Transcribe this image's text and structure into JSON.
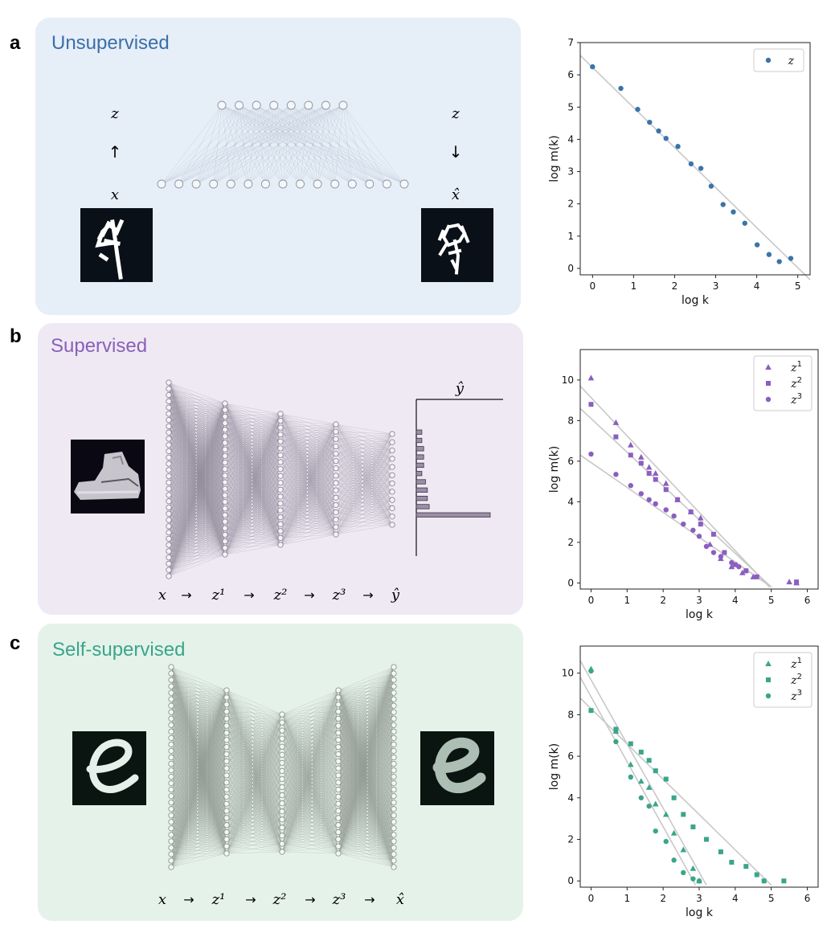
{
  "panels": [
    {
      "letter": "a",
      "title": "Unsupervised",
      "title_color": "#3b6fa8",
      "bg": "#e6eef8"
    },
    {
      "letter": "b",
      "title": "Supervised",
      "title_color": "#8a60b8",
      "bg": "#efe9f4"
    },
    {
      "letter": "c",
      "title": "Self-supervised",
      "title_color": "#3aa58b",
      "bg": "#e5f2ea"
    }
  ],
  "diagram_a": {
    "z_left": "z",
    "arrow_up": "↑",
    "x_left": "x",
    "z_right": "z",
    "arrow_down": "↓",
    "xhat_right": "x̂"
  },
  "diagram_b": {
    "output_label": "ŷ",
    "flow": [
      "x",
      "→",
      "z¹",
      "→",
      "z²",
      "→",
      "z³",
      "→",
      "ŷ"
    ],
    "output_bars": [
      0.03,
      0.03,
      0.04,
      0.04,
      0.04,
      0.03,
      0.05,
      0.06,
      0.06,
      0.07,
      0.4
    ],
    "bar_color": "#9a8fa6"
  },
  "diagram_c": {
    "flow": [
      "x",
      "→",
      "z¹",
      "→",
      "z²",
      "→",
      "z³",
      "→",
      "x̂"
    ]
  },
  "chart_data": [
    {
      "type": "scatter",
      "xlabel": "log k",
      "ylabel": "log m(k)",
      "xlim": [
        -0.3,
        5.3
      ],
      "ylim": [
        -0.2,
        7
      ],
      "xticks": [
        0,
        1,
        2,
        3,
        4,
        5
      ],
      "yticks": [
        0,
        1,
        2,
        3,
        4,
        5,
        6,
        7
      ],
      "legend": "top-right",
      "color": "#3b74a8",
      "series": [
        {
          "name": "z",
          "marker": "circle",
          "x": [
            0,
            0.69,
            1.1,
            1.39,
            1.61,
            1.79,
            2.08,
            2.4,
            2.64,
            2.89,
            3.18,
            3.43,
            3.71,
            4.01,
            4.3,
            4.55,
            4.83
          ],
          "y": [
            6.25,
            5.58,
            4.93,
            4.53,
            4.26,
            4.03,
            3.78,
            3.24,
            3.1,
            2.55,
            1.98,
            1.75,
            1.4,
            0.73,
            0.43,
            0.21,
            0.31
          ]
        }
      ],
      "fit_lines": [
        {
          "x": [
            -0.3,
            5.3
          ],
          "y": [
            6.6,
            -0.35
          ]
        }
      ]
    },
    {
      "type": "scatter",
      "xlabel": "log k",
      "ylabel": "log m(k)",
      "xlim": [
        -0.3,
        6.3
      ],
      "ylim": [
        -0.3,
        11.5
      ],
      "xticks": [
        0,
        1,
        2,
        3,
        4,
        5,
        6
      ],
      "yticks": [
        0,
        2,
        4,
        6,
        8,
        10
      ],
      "legend": "top-right",
      "color": "#8a5fc0",
      "series": [
        {
          "name": "z1",
          "marker": "triangle",
          "x": [
            0,
            0.69,
            1.1,
            1.39,
            1.61,
            1.79,
            2.08,
            2.4,
            2.77,
            3.04,
            3.3,
            3.6,
            3.9,
            4.2,
            4.5,
            5.5,
            5.7
          ],
          "y": [
            10.1,
            7.9,
            6.8,
            6.2,
            5.7,
            5.4,
            4.9,
            4.1,
            3.5,
            3.2,
            1.9,
            1.2,
            0.8,
            0.5,
            0.3,
            0.05,
            0.0
          ]
        },
        {
          "name": "z2",
          "marker": "square",
          "x": [
            0,
            0.69,
            1.1,
            1.39,
            1.61,
            1.79,
            2.08,
            2.4,
            2.77,
            3.04,
            3.4,
            3.7,
            4.0,
            4.3,
            4.6,
            5.7
          ],
          "y": [
            8.8,
            7.2,
            6.3,
            5.9,
            5.4,
            5.1,
            4.6,
            4.1,
            3.5,
            2.9,
            2.4,
            1.5,
            0.9,
            0.6,
            0.3,
            0.05
          ]
        },
        {
          "name": "z3",
          "marker": "circle",
          "x": [
            0,
            0.69,
            1.1,
            1.39,
            1.61,
            1.79,
            2.08,
            2.3,
            2.56,
            2.83,
            3.0,
            3.2,
            3.4,
            3.6,
            3.9,
            4.1,
            4.3
          ],
          "y": [
            6.35,
            5.35,
            4.8,
            4.4,
            4.1,
            3.9,
            3.6,
            3.3,
            2.9,
            2.6,
            2.3,
            1.8,
            1.5,
            1.3,
            1.0,
            0.8,
            0.6
          ]
        }
      ],
      "fit_lines": [
        {
          "x": [
            -0.3,
            4.95
          ],
          "y": [
            9.7,
            -0.2
          ]
        },
        {
          "x": [
            -0.3,
            5.0
          ],
          "y": [
            8.6,
            -0.2
          ]
        },
        {
          "x": [
            -0.3,
            5.0
          ],
          "y": [
            6.3,
            -0.2
          ]
        }
      ]
    },
    {
      "type": "scatter",
      "xlabel": "log k",
      "ylabel": "log m(k)",
      "xlim": [
        -0.3,
        6.3
      ],
      "ylim": [
        -0.3,
        11.3
      ],
      "xticks": [
        0,
        1,
        2,
        3,
        4,
        5,
        6
      ],
      "yticks": [
        0,
        2,
        4,
        6,
        8,
        10
      ],
      "legend": "top-right",
      "color": "#3aa58b",
      "series": [
        {
          "name": "z1",
          "marker": "triangle",
          "x": [
            0,
            0.69,
            1.1,
            1.39,
            1.61,
            1.79,
            2.08,
            2.3,
            2.56,
            2.83,
            3.0
          ],
          "y": [
            10.2,
            7.2,
            5.6,
            4.8,
            4.5,
            3.7,
            3.2,
            2.3,
            1.5,
            0.6,
            0.0
          ]
        },
        {
          "name": "z2",
          "marker": "square",
          "x": [
            0,
            0.69,
            1.1,
            1.39,
            1.61,
            1.79,
            2.08,
            2.3,
            2.56,
            2.83,
            3.2,
            3.6,
            3.9,
            4.3,
            4.6,
            4.8,
            5.35
          ],
          "y": [
            8.2,
            7.3,
            6.6,
            6.2,
            5.8,
            5.3,
            4.9,
            4.0,
            3.2,
            2.6,
            2.0,
            1.4,
            0.9,
            0.7,
            0.3,
            0.0,
            0.0
          ]
        },
        {
          "name": "z3",
          "marker": "circle",
          "x": [
            0,
            0.69,
            1.1,
            1.39,
            1.61,
            1.79,
            2.08,
            2.3,
            2.56,
            2.83,
            3.0
          ],
          "y": [
            10.1,
            6.7,
            5.0,
            4.0,
            3.6,
            2.4,
            1.9,
            1.0,
            0.4,
            0.1,
            0.0
          ]
        }
      ],
      "fit_lines": [
        {
          "x": [
            -0.3,
            3.2
          ],
          "y": [
            10.6,
            -0.2
          ]
        },
        {
          "x": [
            -0.3,
            5.0
          ],
          "y": [
            8.8,
            -0.2
          ]
        },
        {
          "x": [
            -0.3,
            2.9
          ],
          "y": [
            9.8,
            -0.2
          ]
        }
      ]
    }
  ]
}
